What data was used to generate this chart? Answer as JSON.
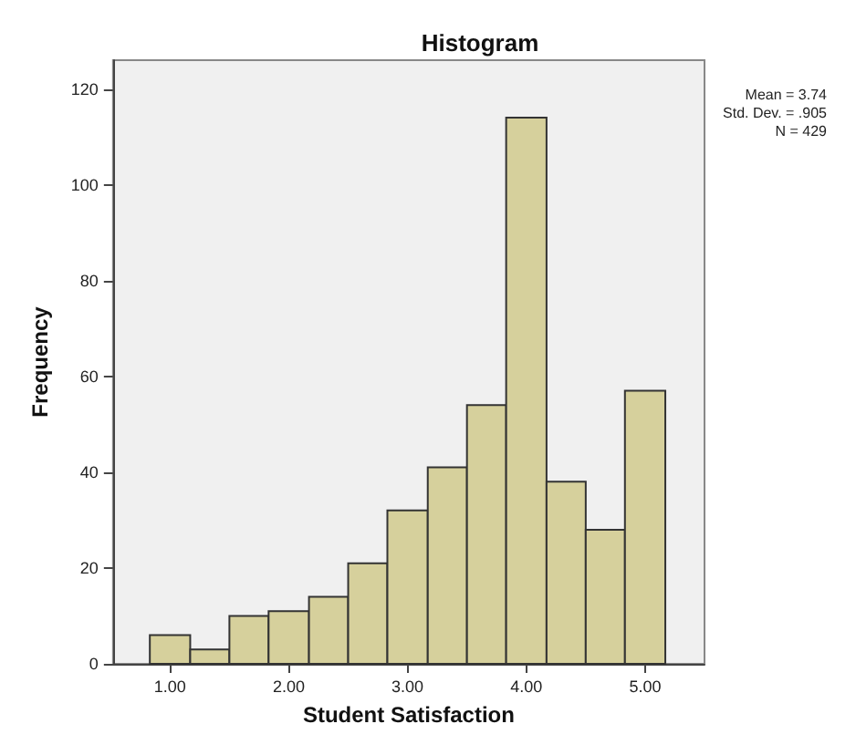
{
  "chart_data": {
    "type": "histogram",
    "title": "Histogram",
    "xlabel": "Student Satisfaction",
    "ylabel": "Frequency",
    "annotations": [
      "Mean = 3.74",
      "Std. Dev. = .905",
      "N = 429"
    ],
    "bins": [
      0.83,
      1.17,
      1.5,
      1.83,
      2.17,
      2.5,
      2.83,
      3.17,
      3.5,
      3.83,
      4.17,
      4.5,
      4.83,
      5.17
    ],
    "values": [
      6,
      3,
      10,
      11,
      14,
      21,
      32,
      41,
      54,
      114,
      38,
      28,
      57
    ],
    "color": "#d6d09c",
    "xlim": [
      0.52,
      5.5
    ],
    "ylim": [
      0,
      126
    ],
    "xticks": [
      {
        "value": 1,
        "label": "1.00"
      },
      {
        "value": 2,
        "label": "2.00"
      },
      {
        "value": 3,
        "label": "3.00"
      },
      {
        "value": 4,
        "label": "4.00"
      },
      {
        "value": 5,
        "label": "5.00"
      }
    ],
    "yticks": [
      0,
      20,
      40,
      60,
      80,
      100,
      120
    ]
  }
}
